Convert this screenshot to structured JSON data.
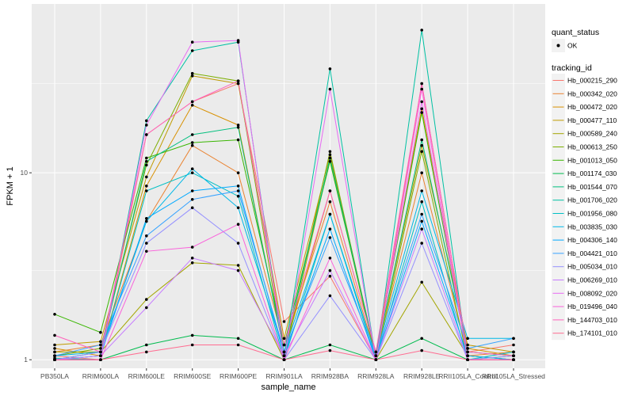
{
  "chart_data": {
    "type": "line",
    "xlabel": "sample_name",
    "ylabel": "FPKM + 1",
    "y_scale": "log10",
    "ylim": [
      0.9,
      80
    ],
    "y_ticks": [
      {
        "value": 1,
        "label": "1"
      },
      {
        "value": 10,
        "label": "10"
      }
    ],
    "grid": true,
    "legend_position": "right",
    "categories": [
      "PB350LA",
      "RRIM600LA",
      "RRIM600LE",
      "RRIM600SE",
      "RRIM600PE",
      "RRIM901LA",
      "RRIM928BA",
      "RRIM928LA",
      "RRIM928LE",
      "RRII105LA_Control",
      "RRII105LA_Stressed"
    ],
    "legend_shape": {
      "title": "quant_status",
      "items": [
        "OK"
      ]
    },
    "legend_color_title": "tracking_id",
    "series": [
      {
        "name": "Hb_000215_290",
        "color": "#F8766D",
        "values": [
          1.05,
          1.0,
          16.0,
          24.0,
          30.0,
          1.6,
          2.8,
          1.0,
          30.0,
          1.1,
          1.2
        ]
      },
      {
        "name": "Hb_000342_020",
        "color": "#EA8331",
        "values": [
          1.1,
          1.2,
          5.5,
          14.0,
          10.0,
          1.2,
          7.0,
          1.05,
          10.0,
          1.05,
          1.1
        ]
      },
      {
        "name": "Hb_000472_020",
        "color": "#D89000",
        "values": [
          1.15,
          1.05,
          8.5,
          23.0,
          18.0,
          1.1,
          8.0,
          1.1,
          22.0,
          1.15,
          1.05
        ]
      },
      {
        "name": "Hb_000477_110",
        "color": "#C09B00",
        "values": [
          1.2,
          1.25,
          9.5,
          33.0,
          30.0,
          1.3,
          12.5,
          1.05,
          14.0,
          1.2,
          1.1
        ]
      },
      {
        "name": "Hb_000589_240",
        "color": "#A3A500",
        "values": [
          1.1,
          1.1,
          2.1,
          3.3,
          3.2,
          1.0,
          12.0,
          1.0,
          2.6,
          1.05,
          1.0
        ]
      },
      {
        "name": "Hb_000613_250",
        "color": "#7CAE00",
        "values": [
          1.05,
          1.15,
          11.0,
          34.0,
          31.0,
          1.05,
          13.0,
          1.0,
          13.0,
          1.0,
          1.05
        ]
      },
      {
        "name": "Hb_001013_050",
        "color": "#39B600",
        "values": [
          1.75,
          1.4,
          12.0,
          14.5,
          15.0,
          1.2,
          11.5,
          1.05,
          21.0,
          1.05,
          1.0
        ]
      },
      {
        "name": "Hb_001174_030",
        "color": "#00BB4E",
        "values": [
          1.0,
          1.0,
          1.2,
          1.35,
          1.3,
          1.0,
          1.2,
          1.0,
          1.3,
          1.0,
          1.0
        ]
      },
      {
        "name": "Hb_001544_070",
        "color": "#00BF7D",
        "values": [
          1.0,
          1.1,
          11.5,
          16.0,
          17.5,
          1.1,
          12.0,
          1.05,
          15.0,
          1.1,
          1.05
        ]
      },
      {
        "name": "Hb_001706_020",
        "color": "#00C1A3",
        "values": [
          1.02,
          1.0,
          19.0,
          45.0,
          50.0,
          1.05,
          36.0,
          1.0,
          58.0,
          1.0,
          1.0
        ]
      },
      {
        "name": "Hb_001956_080",
        "color": "#00BFC4",
        "values": [
          1.0,
          1.05,
          8.0,
          10.0,
          7.5,
          1.0,
          6.0,
          1.0,
          7.0,
          1.0,
          1.1
        ]
      },
      {
        "name": "Hb_003835_030",
        "color": "#00B8E7",
        "values": [
          1.05,
          1.1,
          5.5,
          10.5,
          6.5,
          1.1,
          6.0,
          1.05,
          8.0,
          1.3,
          1.3
        ]
      },
      {
        "name": "Hb_004306_140",
        "color": "#00A9FF",
        "values": [
          1.0,
          1.05,
          5.7,
          8.0,
          8.5,
          1.05,
          5.0,
          1.0,
          5.5,
          1.05,
          1.0
        ]
      },
      {
        "name": "Hb_004421_010",
        "color": "#35A2FF",
        "values": [
          1.05,
          1.2,
          4.6,
          7.2,
          8.0,
          1.1,
          4.5,
          1.05,
          6.0,
          1.15,
          1.3
        ]
      },
      {
        "name": "Hb_005034_010",
        "color": "#9590FF",
        "values": [
          1.0,
          1.1,
          4.2,
          6.5,
          4.2,
          1.0,
          2.2,
          1.0,
          4.2,
          1.0,
          1.05
        ]
      },
      {
        "name": "Hb_006269_010",
        "color": "#C77CFF",
        "values": [
          1.0,
          1.05,
          1.9,
          3.5,
          3.0,
          1.05,
          3.0,
          1.0,
          5.0,
          1.0,
          1.0
        ]
      },
      {
        "name": "Hb_008092_020",
        "color": "#E76BF3",
        "values": [
          1.0,
          1.0,
          18.0,
          50.0,
          51.0,
          1.0,
          28.0,
          1.0,
          24.0,
          1.0,
          1.0
        ]
      },
      {
        "name": "Hb_019496_040",
        "color": "#FA62DB",
        "values": [
          1.0,
          1.0,
          3.8,
          4.0,
          5.3,
          1.0,
          3.5,
          1.0,
          28.0,
          1.0,
          1.0
        ]
      },
      {
        "name": "Hb_144703_010",
        "color": "#FF62BC",
        "values": [
          1.35,
          1.1,
          16.0,
          24.0,
          31.0,
          1.2,
          8.0,
          1.1,
          30.0,
          1.1,
          1.05
        ]
      },
      {
        "name": "Hb_174101_010",
        "color": "#FF6C91",
        "values": [
          1.0,
          1.0,
          1.1,
          1.2,
          1.2,
          1.0,
          1.12,
          1.0,
          1.12,
          1.0,
          1.0
        ]
      }
    ]
  }
}
